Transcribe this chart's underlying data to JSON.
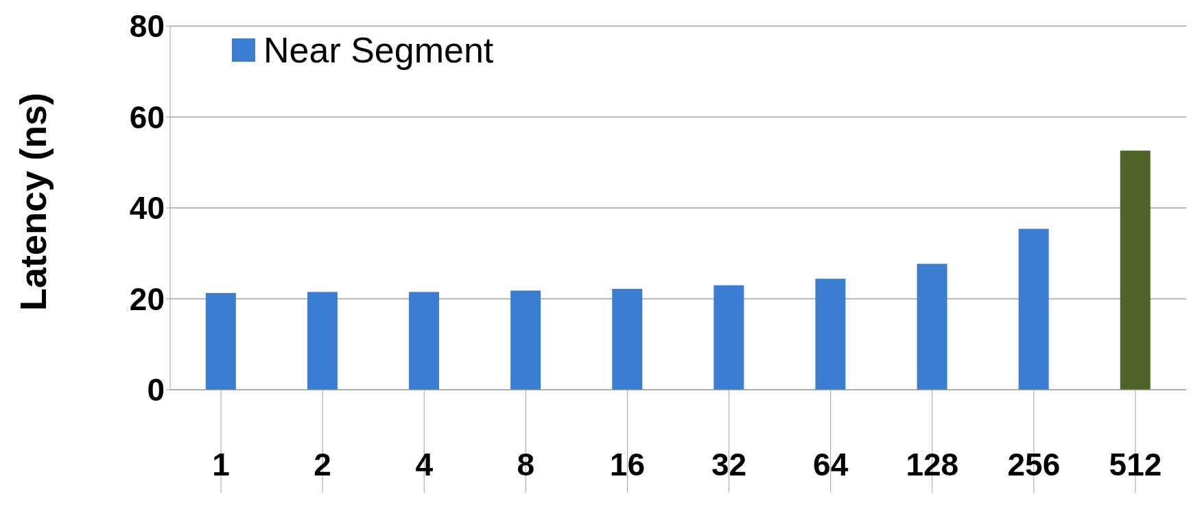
{
  "chart_data": {
    "type": "bar",
    "ylabel": "Latency (ns)",
    "categories": [
      "1",
      "2",
      "4",
      "8",
      "16",
      "32",
      "64",
      "128",
      "256",
      "512"
    ],
    "series": [
      {
        "name": "Near Segment",
        "color": "#3b7dd0",
        "colors": [
          "#3b7dd0",
          "#3b7dd0",
          "#3b7dd0",
          "#3b7dd0",
          "#3b7dd0",
          "#3b7dd0",
          "#3b7dd0",
          "#3b7dd0",
          "#3b7dd0",
          "#4f6228"
        ],
        "values": [
          21.3,
          21.5,
          21.5,
          21.8,
          22.2,
          23.0,
          24.4,
          27.7,
          35.4,
          52.6
        ]
      }
    ],
    "ylim": [
      0,
      80
    ],
    "yticks": [
      0,
      20,
      40,
      60,
      80
    ],
    "grid": "y",
    "legend": "top left"
  }
}
